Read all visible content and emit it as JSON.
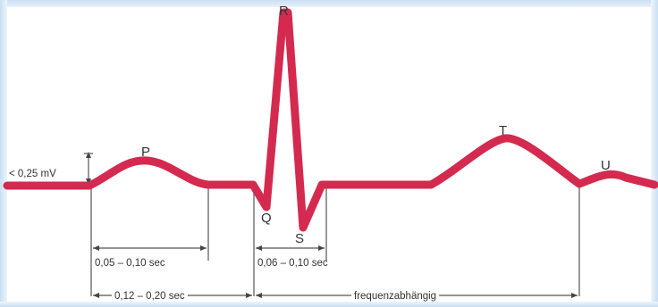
{
  "waves": {
    "p": "P",
    "q": "Q",
    "r": "R",
    "s": "S",
    "t": "T",
    "u": "U"
  },
  "amplitude_label": "< 0,25 mV",
  "intervals": {
    "p_wave": "0,05 – 0,10 sec",
    "qrs": "0,06 – 0,10 sec",
    "pq": "0,12 – 0,20 sec",
    "qt": "frequenzabhängig"
  },
  "colors": {
    "trace": "#d42a4f",
    "guides": "#555555",
    "frame": "#c9dff2"
  }
}
